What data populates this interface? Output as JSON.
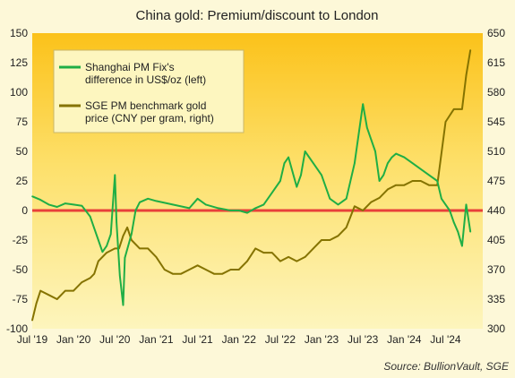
{
  "chart_data": {
    "type": "line",
    "title": "China gold: Premium/discount to London",
    "source": "Source: BullionVault, SGE",
    "x_ticks": [
      "Jul '19",
      "Jan '20",
      "Jul '20",
      "Jan '21",
      "Jul '21",
      "Jan '22",
      "Jul '22",
      "Jan '23",
      "Jul '23",
      "Jan '24",
      "Jul '24"
    ],
    "y_left": {
      "ticks": [
        150,
        125,
        100,
        75,
        50,
        25,
        0,
        -25,
        -50,
        -75,
        -100
      ],
      "range": [
        -100,
        150
      ]
    },
    "y_right": {
      "ticks": [
        650,
        615,
        580,
        545,
        510,
        475,
        440,
        405,
        370,
        335,
        300
      ],
      "range": [
        300,
        650
      ]
    },
    "zero_line_color": "#e8403a",
    "grid": false,
    "legend_position": "top-left",
    "series": [
      {
        "name": "Shanghai PM Fix's difference in US$/oz (left)",
        "color": "#1fae45",
        "axis": "left",
        "x": [
          2019.5,
          2019.6,
          2019.7,
          2019.8,
          2019.9,
          2020.0,
          2020.1,
          2020.2,
          2020.25,
          2020.3,
          2020.35,
          2020.4,
          2020.45,
          2020.5,
          2020.52,
          2020.56,
          2020.6,
          2020.62,
          2020.66,
          2020.7,
          2020.75,
          2020.8,
          2020.9,
          2021.0,
          2021.2,
          2021.4,
          2021.5,
          2021.6,
          2021.75,
          2021.9,
          2022.0,
          2022.1,
          2022.2,
          2022.3,
          2022.4,
          2022.5,
          2022.55,
          2022.6,
          2022.7,
          2022.75,
          2022.8,
          2022.9,
          2023.0,
          2023.1,
          2023.2,
          2023.3,
          2023.4,
          2023.5,
          2023.55,
          2023.6,
          2023.65,
          2023.7,
          2023.75,
          2023.8,
          2023.85,
          2023.9,
          2024.0,
          2024.1,
          2024.2,
          2024.3,
          2024.4,
          2024.45,
          2024.5,
          2024.55,
          2024.6,
          2024.65,
          2024.7,
          2024.75,
          2024.8
        ],
        "y": [
          12,
          9,
          5,
          3,
          6,
          5,
          4,
          -5,
          -15,
          -25,
          -35,
          -30,
          -20,
          30,
          -10,
          -55,
          -80,
          -40,
          -30,
          -20,
          0,
          7,
          10,
          8,
          5,
          2,
          10,
          5,
          2,
          0,
          0,
          -2,
          2,
          5,
          15,
          25,
          40,
          45,
          20,
          30,
          50,
          40,
          30,
          10,
          5,
          10,
          40,
          90,
          70,
          60,
          50,
          25,
          30,
          40,
          45,
          48,
          45,
          40,
          35,
          30,
          25,
          10,
          5,
          0,
          -10,
          -18,
          -30,
          5,
          -18
        ]
      },
      {
        "name": "SGE PM benchmark gold price (CNY per gram, right)",
        "color": "#857300",
        "axis": "right",
        "x": [
          2019.5,
          2019.55,
          2019.6,
          2019.7,
          2019.8,
          2019.9,
          2020.0,
          2020.1,
          2020.2,
          2020.25,
          2020.3,
          2020.4,
          2020.5,
          2020.55,
          2020.6,
          2020.65,
          2020.7,
          2020.8,
          2020.9,
          2021.0,
          2021.1,
          2021.2,
          2021.3,
          2021.4,
          2021.5,
          2021.6,
          2021.7,
          2021.8,
          2021.9,
          2022.0,
          2022.1,
          2022.2,
          2022.3,
          2022.4,
          2022.5,
          2022.6,
          2022.7,
          2022.8,
          2022.9,
          2023.0,
          2023.1,
          2023.2,
          2023.3,
          2023.4,
          2023.5,
          2023.6,
          2023.7,
          2023.8,
          2023.9,
          2024.0,
          2024.1,
          2024.2,
          2024.3,
          2024.4,
          2024.5,
          2024.6,
          2024.7,
          2024.75,
          2024.8
        ],
        "y": [
          310,
          330,
          345,
          340,
          335,
          345,
          345,
          355,
          360,
          365,
          380,
          390,
          395,
          395,
          410,
          420,
          405,
          395,
          395,
          385,
          370,
          365,
          365,
          370,
          375,
          370,
          365,
          365,
          370,
          370,
          380,
          395,
          390,
          390,
          380,
          385,
          380,
          385,
          395,
          405,
          405,
          410,
          420,
          445,
          440,
          450,
          455,
          465,
          470,
          470,
          475,
          475,
          470,
          470,
          545,
          560,
          560,
          600,
          630
        ]
      }
    ]
  }
}
